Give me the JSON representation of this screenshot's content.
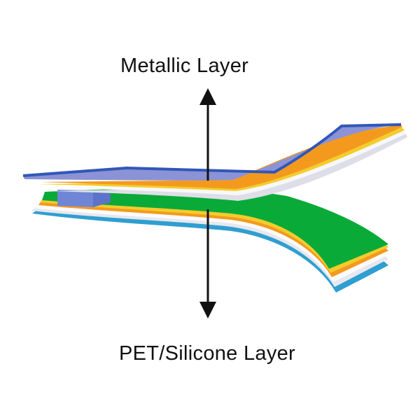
{
  "labels": {
    "top": "Metallic Layer",
    "bottom": "PET/Silicone Layer"
  },
  "colors": {
    "metallic_top_face": "#8b93d6",
    "metallic_edge_blue": "#3157b8",
    "layer_yellow": "#f4cc2c",
    "layer_orange": "#f39a1e",
    "layer_light_gray": "#e3e3ea",
    "layer_white": "#f8f8fb",
    "spacer_blue": "#6f86d7",
    "pet_green": "#0aaa38",
    "pet_blue_edge": "#2f9ed0",
    "arrow": "#111111"
  }
}
